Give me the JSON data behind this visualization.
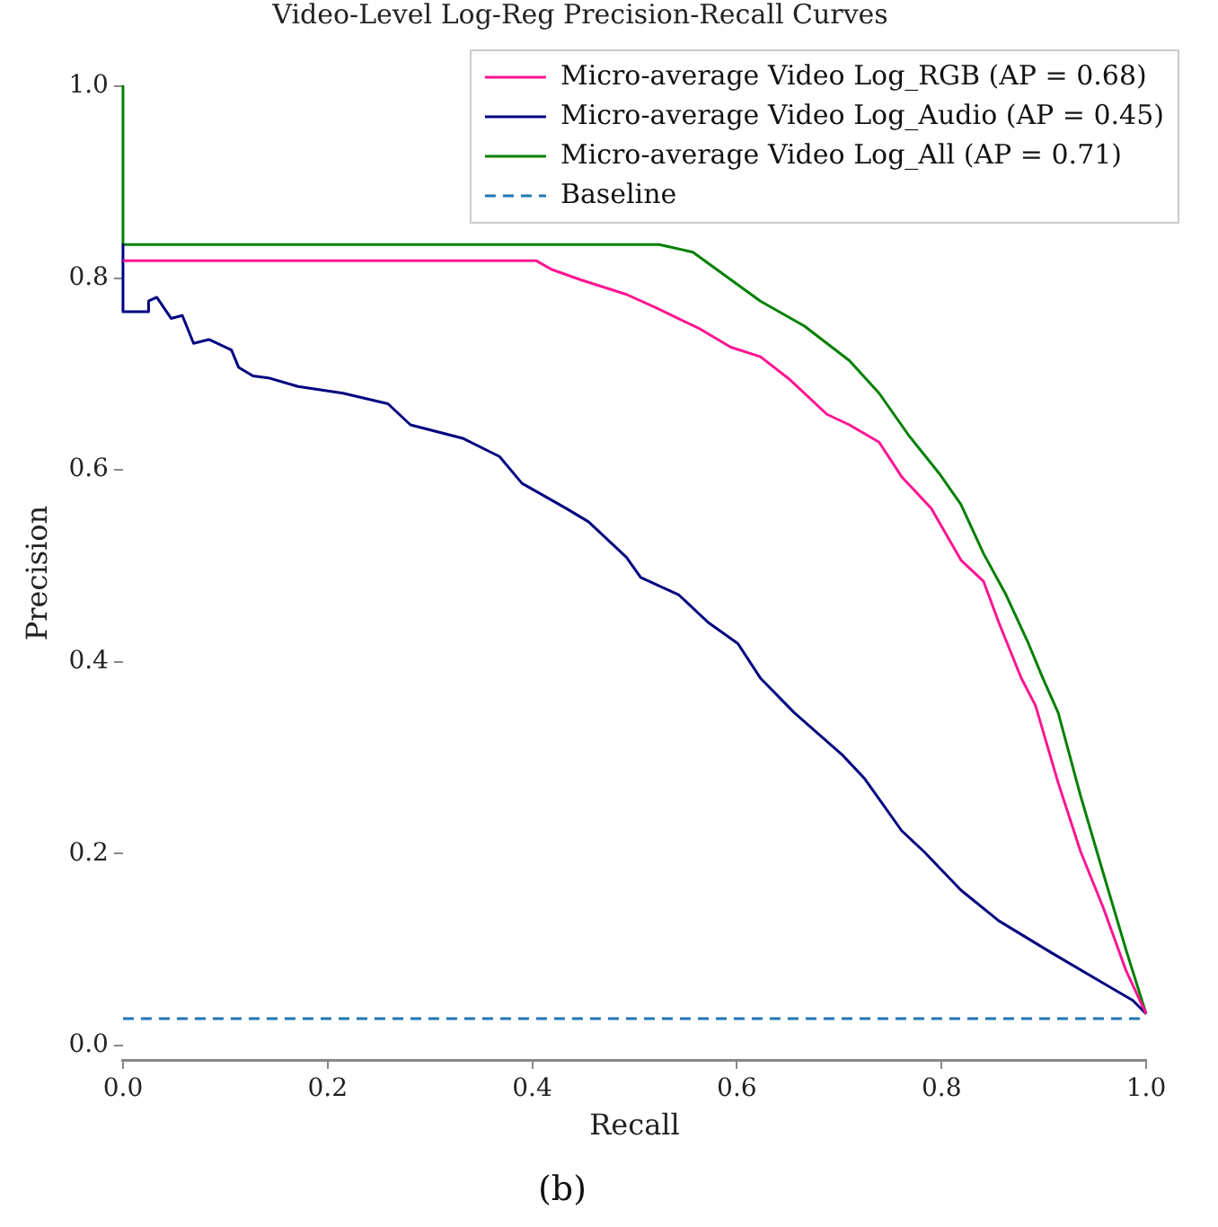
{
  "chart_data": {
    "type": "line",
    "title": "Video-Level Log-Reg Precision-Recall Curves",
    "xlabel": "Recall",
    "ylabel": "Precision",
    "annotations": [
      "(b)"
    ],
    "xlim": [
      0,
      1
    ],
    "ylim": [
      -0.015,
      1.0
    ],
    "xticks": [
      {
        "value": 0,
        "label": "0.0"
      },
      0.2,
      0.4,
      0.6,
      0.8,
      {
        "value": 1,
        "label": "1.0"
      }
    ],
    "yticks": [
      {
        "value": 0,
        "label": "0.0"
      },
      0.2,
      0.4,
      0.6,
      0.8,
      {
        "value": 1,
        "label": "1.0"
      }
    ],
    "legend": "top right",
    "grid": false,
    "marker": "none",
    "series": [
      {
        "name": "Micro-average Video Log_RGB (AP = 0.68)",
        "color": "#ff1493",
        "line_style": "solid",
        "x": [
          0,
          0.404,
          0.419,
          0.448,
          0.492,
          0.521,
          0.564,
          0.594,
          0.623,
          0.652,
          0.688,
          0.71,
          0.739,
          0.761,
          0.79,
          0.819,
          0.841,
          0.856,
          0.878,
          0.892,
          0.914,
          0.936,
          0.958,
          0.98,
          1.0
        ],
        "values": [
          0.818,
          0.818,
          0.809,
          0.798,
          0.783,
          0.769,
          0.747,
          0.728,
          0.718,
          0.694,
          0.658,
          0.647,
          0.629,
          0.593,
          0.56,
          0.506,
          0.484,
          0.441,
          0.383,
          0.354,
          0.274,
          0.202,
          0.144,
          0.079,
          0.033
        ]
      },
      {
        "name": "Micro-average Video Log_Audio (AP = 0.45)",
        "color": "#000080",
        "line_style": "solid",
        "x": [
          0,
          0,
          0.025,
          0.025,
          0.033,
          0.047,
          0.058,
          0.069,
          0.084,
          0.106,
          0.113,
          0.127,
          0.142,
          0.171,
          0.215,
          0.259,
          0.281,
          0.332,
          0.368,
          0.39,
          0.433,
          0.455,
          0.492,
          0.506,
          0.543,
          0.572,
          0.601,
          0.623,
          0.656,
          0.703,
          0.725,
          0.761,
          0.783,
          0.819,
          0.856,
          0.907,
          0.958,
          0.987,
          1.0
        ],
        "values": [
          0.835,
          0.765,
          0.765,
          0.776,
          0.78,
          0.758,
          0.761,
          0.732,
          0.736,
          0.725,
          0.707,
          0.698,
          0.696,
          0.687,
          0.68,
          0.669,
          0.647,
          0.633,
          0.614,
          0.586,
          0.56,
          0.546,
          0.509,
          0.488,
          0.47,
          0.441,
          0.419,
          0.383,
          0.347,
          0.303,
          0.278,
          0.224,
          0.202,
          0.162,
          0.13,
          0.097,
          0.065,
          0.047,
          0.033
        ]
      },
      {
        "name": "Micro-average Video Log_All (AP = 0.71)",
        "color": "#008000",
        "line_style": "solid",
        "x": [
          0,
          0,
          0.524,
          0.557,
          0.623,
          0.666,
          0.71,
          0.739,
          0.768,
          0.798,
          0.819,
          0.841,
          0.863,
          0.885,
          0.899,
          0.914,
          0.936,
          0.958,
          0.98,
          1.0
        ],
        "values": [
          1.0,
          0.835,
          0.835,
          0.827,
          0.776,
          0.75,
          0.714,
          0.68,
          0.636,
          0.596,
          0.564,
          0.513,
          0.47,
          0.419,
          0.383,
          0.347,
          0.26,
          0.18,
          0.101,
          0.033
        ]
      },
      {
        "name": "Baseline",
        "color": "#1f77b4",
        "line_style": "dashed",
        "x": [
          0,
          1
        ],
        "values": [
          0.028,
          0.028
        ]
      }
    ]
  }
}
